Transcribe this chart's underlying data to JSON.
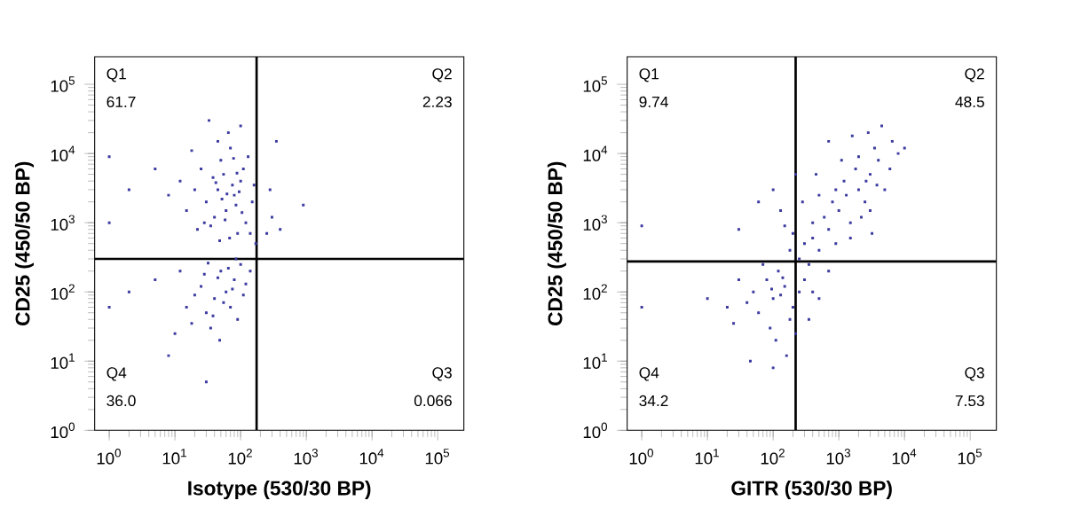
{
  "chart_data": [
    {
      "type": "scatter",
      "xlabel": "Isotype (530/30 BP)",
      "ylabel": "CD25 (450/50 BP)",
      "color": "#3a3aa0",
      "marker": "square",
      "log": "xy",
      "xlim": [
        0.6,
        250000
      ],
      "ylim": [
        1,
        250000
      ],
      "xticks": [
        {
          "value": 1,
          "label": "10$^{0}$"
        },
        {
          "value": 10,
          "label": "10$^{1}$"
        },
        {
          "value": 100,
          "label": "10$^{2}$"
        },
        {
          "value": 1000,
          "label": "10$^{3}$"
        },
        {
          "value": 10000,
          "label": "10$^{4}$"
        },
        {
          "value": 100000,
          "label": "10$^{5}$"
        }
      ],
      "yticks": [
        {
          "value": 1,
          "label": "10$^{0}$"
        },
        {
          "value": 10,
          "label": "10$^{1}$"
        },
        {
          "value": 100,
          "label": "10$^{2}$"
        },
        {
          "value": 1000,
          "label": "10$^{3}$"
        },
        {
          "value": 10000,
          "label": "10$^{4}$"
        },
        {
          "value": 100000,
          "label": "10$^{5}$"
        }
      ],
      "ref_lines": [
        {
          "axis": "x",
          "value": 175,
          "color": "#000000"
        },
        {
          "axis": "y",
          "value": 300,
          "color": "#000000"
        }
      ],
      "annotations": [
        "Q1",
        "61.7",
        "Q2",
        "2.23",
        "Q4",
        "36.0",
        "Q3",
        "0.066"
      ],
      "x": [
        30,
        45,
        60,
        80,
        100,
        50,
        70,
        25,
        40,
        120,
        150,
        90,
        35,
        55,
        75,
        110,
        20,
        15,
        65,
        130,
        45,
        28,
        85,
        95,
        160,
        140,
        38,
        52,
        68,
        22,
        12,
        8,
        5,
        100,
        33,
        170,
        58,
        78,
        48,
        18,
        105,
        62,
        42,
        88,
        2,
        1,
        1,
        40,
        60,
        30,
        80,
        50,
        25,
        70,
        100,
        35,
        20,
        90,
        45,
        15,
        55,
        65,
        120,
        28,
        38,
        75,
        10,
        12,
        48,
        18,
        85,
        32,
        110,
        140,
        5,
        1,
        2,
        8,
        30,
        300,
        250,
        400,
        900,
        350,
        280
      ],
      "values": [
        2000,
        3000,
        1500,
        2500,
        4000,
        8000,
        12000,
        6000,
        1200,
        1000,
        2000,
        700,
        900,
        5000,
        3500,
        6000,
        3000,
        1500,
        20000,
        9000,
        15000,
        1000,
        1800,
        2800,
        3500,
        700,
        4500,
        2200,
        600,
        800,
        4000,
        2500,
        6000,
        25000,
        30000,
        500,
        1100,
        8500,
        550,
        11000,
        1400,
        2600,
        3800,
        5200,
        3000,
        1000,
        9000,
        80,
        100,
        50,
        150,
        200,
        120,
        60,
        250,
        30,
        90,
        40,
        160,
        60,
        70,
        220,
        130,
        180,
        45,
        110,
        25,
        200,
        20,
        35,
        300,
        260,
        90,
        200,
        150,
        60,
        100,
        12,
        5,
        1200,
        700,
        800,
        1800,
        15000,
        3000
      ]
    },
    {
      "type": "scatter",
      "xlabel": "GITR (530/30 BP)",
      "ylabel": "CD25 (450/50 BP)",
      "color": "#3a3aa0",
      "marker": "square",
      "log": "xy",
      "xlim": [
        0.6,
        250000
      ],
      "ylim": [
        1,
        250000
      ],
      "xticks": [
        {
          "value": 1,
          "label": "10$^{0}$"
        },
        {
          "value": 10,
          "label": "10$^{1}$"
        },
        {
          "value": 100,
          "label": "10$^{2}$"
        },
        {
          "value": 1000,
          "label": "10$^{3}$"
        },
        {
          "value": 10000,
          "label": "10$^{4}$"
        },
        {
          "value": 100000,
          "label": "10$^{5}$"
        }
      ],
      "yticks": [
        {
          "value": 1,
          "label": "10$^{0}$"
        },
        {
          "value": 10,
          "label": "10$^{1}$"
        },
        {
          "value": 100,
          "label": "10$^{2}$"
        },
        {
          "value": 1000,
          "label": "10$^{3}$"
        },
        {
          "value": 10000,
          "label": "10$^{4}$"
        },
        {
          "value": 100000,
          "label": "10$^{5}$"
        }
      ],
      "ref_lines": [
        {
          "axis": "x",
          "value": 220,
          "color": "#000000"
        },
        {
          "axis": "y",
          "value": 275,
          "color": "#000000"
        }
      ],
      "annotations": [
        "Q1",
        "9.74",
        "Q2",
        "48.5",
        "Q4",
        "34.2",
        "Q3",
        "7.53"
      ],
      "x": [
        100,
        60,
        150,
        80,
        200,
        120,
        50,
        40,
        250,
        90,
        180,
        70,
        130,
        110,
        30,
        20,
        300,
        400,
        500,
        350,
        220,
        160,
        100,
        45,
        25,
        10,
        1,
        700,
        140,
        95,
        250,
        300,
        200,
        350,
        180,
        400,
        150,
        280,
        130,
        220,
        1000,
        2000,
        1500,
        3000,
        800,
        1200,
        2500,
        4000,
        600,
        1800,
        5000,
        3500,
        700,
        900,
        1500,
        2200,
        3000,
        6000,
        8000,
        500,
        400,
        1100,
        2800,
        4500,
        700,
        1300,
        2600,
        3200,
        500,
        6500,
        10000,
        2000,
        1600,
        3800,
        900,
        450,
        1,
        30,
        100,
        60
      ],
      "values": [
        80,
        50,
        120,
        150,
        60,
        200,
        100,
        70,
        100,
        30,
        40,
        250,
        90,
        20,
        150,
        60,
        150,
        100,
        80,
        40,
        25,
        12,
        8,
        10,
        35,
        80,
        60,
        200,
        160,
        110,
        300,
        500,
        700,
        250,
        400,
        600,
        900,
        2000,
        1500,
        5000,
        1500,
        3000,
        1000,
        5000,
        2000,
        4000,
        2000,
        8000,
        1200,
        6000,
        3000,
        12000,
        800,
        500,
        600,
        1200,
        1500,
        6000,
        10000,
        2500,
        1000,
        8000,
        20000,
        25000,
        15000,
        2500,
        4000,
        700,
        400,
        15000,
        12000,
        9000,
        18000,
        3500,
        3000,
        5000,
        900,
        800,
        3000,
        2000
      ]
    }
  ]
}
